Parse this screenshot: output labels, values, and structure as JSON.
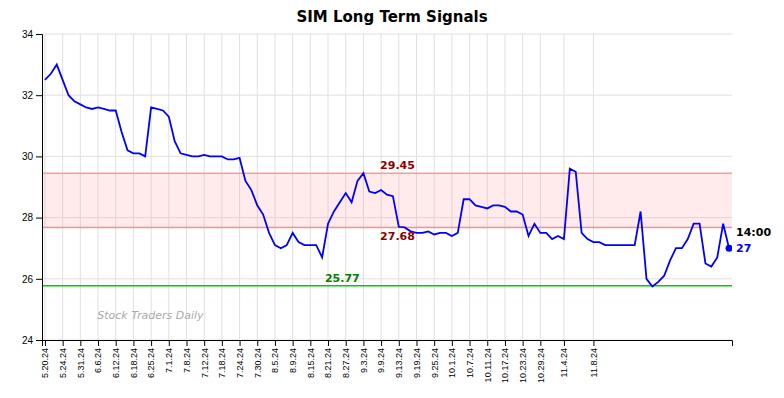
{
  "chart_data": {
    "type": "line",
    "title": "SIM Long Term Signals",
    "categories": [
      "5.20.24",
      null,
      null,
      "5.24.24",
      null,
      null,
      "5.31.24",
      null,
      null,
      "6.6.24",
      null,
      null,
      "6.12.24",
      null,
      null,
      "6.18.24",
      null,
      null,
      "6.25.24",
      null,
      null,
      "7.1.24",
      null,
      null,
      "7.8.24",
      null,
      null,
      "7.12.24",
      null,
      null,
      "7.18.24",
      null,
      null,
      "7.24.24",
      null,
      null,
      "7.30.24",
      null,
      null,
      "8.5.24",
      null,
      null,
      "8.9.24",
      null,
      null,
      "8.15.24",
      null,
      null,
      "8.21.24",
      null,
      null,
      "8.27.24",
      null,
      null,
      "9.3.24",
      null,
      null,
      "9.9.24",
      null,
      null,
      "9.13.24",
      null,
      null,
      "9.19.24",
      null,
      null,
      "9.25.24",
      null,
      null,
      "10.1.24",
      null,
      null,
      "10.7.24",
      null,
      null,
      "10.11.24",
      null,
      null,
      "10.17.24",
      null,
      null,
      "10.23.24",
      null,
      null,
      "10.29.24",
      null,
      null,
      null,
      "11.4.24",
      null,
      null,
      null,
      null,
      "11.8.24",
      null,
      null,
      null,
      null,
      null,
      null,
      null,
      null,
      null,
      null,
      null,
      null,
      null,
      null,
      null,
      null,
      null,
      null,
      null,
      null,
      null,
      null,
      null
    ],
    "values": [
      32.5,
      32.7,
      33.0,
      32.5,
      32.0,
      31.8,
      31.7,
      31.6,
      31.55,
      31.6,
      31.55,
      31.5,
      31.5,
      30.8,
      30.2,
      30.1,
      30.1,
      30.0,
      31.6,
      31.55,
      31.5,
      31.3,
      30.5,
      30.1,
      30.05,
      30.0,
      30.0,
      30.05,
      30.0,
      30.0,
      30.0,
      29.9,
      29.9,
      29.95,
      29.2,
      28.9,
      28.4,
      28.1,
      27.5,
      27.1,
      27.0,
      27.1,
      27.5,
      27.2,
      27.1,
      27.1,
      27.1,
      26.7,
      27.8,
      28.2,
      28.5,
      28.8,
      28.5,
      29.2,
      29.45,
      28.85,
      28.8,
      28.9,
      28.75,
      28.7,
      27.7,
      27.68,
      27.55,
      27.5,
      27.5,
      27.55,
      27.45,
      27.5,
      27.5,
      27.4,
      27.5,
      28.6,
      28.6,
      28.4,
      28.35,
      28.3,
      28.4,
      28.4,
      28.35,
      28.2,
      28.2,
      28.1,
      27.4,
      27.8,
      27.5,
      27.5,
      27.3,
      27.4,
      27.3,
      29.6,
      29.5,
      27.5,
      27.3,
      27.2,
      27.2,
      27.1,
      27.1,
      27.1,
      27.1,
      27.1,
      27.1,
      28.2,
      26.0,
      25.75,
      25.9,
      26.1,
      26.6,
      27.0,
      27.0,
      27.3,
      27.8,
      27.8,
      26.5,
      26.4,
      26.7,
      27.8,
      27.0
    ],
    "color": "#0000ff",
    "ylim": [
      24,
      34
    ],
    "yticks": [
      24,
      26,
      28,
      30,
      32,
      34
    ],
    "grid": true,
    "bands": [
      {
        "from": 27.68,
        "to": 29.45,
        "color": "#ff9999"
      }
    ],
    "reference_lines": [
      {
        "value": 29.45,
        "color": "#ff9999",
        "label": "29.45",
        "label_color": "darkred"
      },
      {
        "value": 27.68,
        "color": "#ff9999",
        "label": "27.68",
        "label_color": "darkred"
      },
      {
        "value": 25.77,
        "color": "#00cc00",
        "label": "25.77",
        "label_color": "green"
      },
      {
        "value": 27.68,
        "color": "#cc99cc"
      }
    ],
    "last_point": {
      "value": 27,
      "time": "14:00"
    },
    "watermark": "Stock Traders Daily"
  }
}
